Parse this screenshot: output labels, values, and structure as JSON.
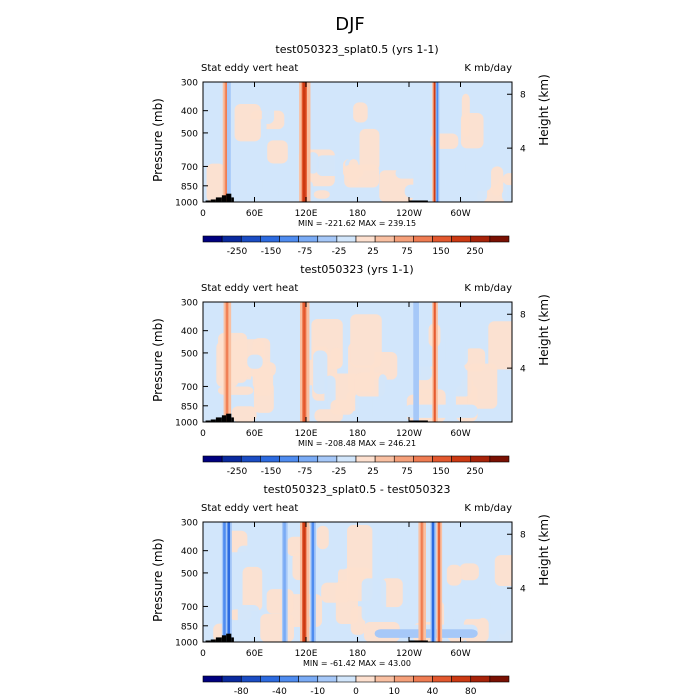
{
  "figure": {
    "title": "DJF"
  },
  "chart_data": [
    {
      "type": "heatmap",
      "title": "test050323_splat0.5 (yrs 1-1)",
      "left_label": "Stat eddy vert heat",
      "right_label": "K mb/day",
      "ylabel": "Pressure (mb)",
      "ylabel_right": "Height (km)",
      "yticks": [
        "300",
        "400",
        "500",
        "700",
        "850",
        "1000"
      ],
      "yticks_right": [
        "8",
        "4"
      ],
      "xticks": [
        "0",
        "60E",
        "120E",
        "180",
        "120W",
        "60W"
      ],
      "stats": "MIN = -221.62   MAX = 239.15",
      "colorbar_labels": [
        "-250",
        "-150",
        "-75",
        "-25",
        "25",
        "75",
        "150",
        "250"
      ],
      "colors": [
        "#00007f",
        "#0a2a9f",
        "#1b4dc4",
        "#2d6be0",
        "#4f8cf0",
        "#7aabf5",
        "#a6c8f8",
        "#d2e6fb",
        "#fde0cf",
        "#f9c0a2",
        "#f5a07a",
        "#ef7c52",
        "#e3582e",
        "#cc3a13",
        "#a82309",
        "#7a1003"
      ],
      "stripes": [
        {
          "lon": 27,
          "width": 4,
          "level": 10
        },
        {
          "lon": 30,
          "width": 2,
          "level": 6
        },
        {
          "lon": 118,
          "width": 6,
          "level": 12
        },
        {
          "lon": 270,
          "width": 3,
          "level": 12
        },
        {
          "lon": 273,
          "width": 2,
          "level": 4
        }
      ]
    },
    {
      "type": "heatmap",
      "title": "test050323 (yrs 1-1)",
      "left_label": "Stat eddy vert heat",
      "right_label": "K mb/day",
      "ylabel": "Pressure (mb)",
      "ylabel_right": "Height (km)",
      "yticks": [
        "300",
        "400",
        "500",
        "700",
        "850",
        "1000"
      ],
      "yticks_right": [
        "8",
        "4"
      ],
      "xticks": [
        "0",
        "60E",
        "120E",
        "180",
        "120W",
        "60W"
      ],
      "stats": "MIN = -208.48   MAX = 246.21",
      "colorbar_labels": [
        "-250",
        "-150",
        "-75",
        "-25",
        "25",
        "75",
        "150",
        "250"
      ],
      "colors": [
        "#00007f",
        "#0a2a9f",
        "#1b4dc4",
        "#2d6be0",
        "#4f8cf0",
        "#7aabf5",
        "#a6c8f8",
        "#d2e6fb",
        "#fde0cf",
        "#f9c0a2",
        "#f5a07a",
        "#ef7c52",
        "#e3582e",
        "#cc3a13",
        "#a82309",
        "#7a1003"
      ],
      "stripes": [
        {
          "lon": 28,
          "width": 4,
          "level": 10
        },
        {
          "lon": 118,
          "width": 5,
          "level": 11
        },
        {
          "lon": 270,
          "width": 3,
          "level": 11
        },
        {
          "lon": 248,
          "width": 3,
          "level": 6
        }
      ]
    },
    {
      "type": "heatmap",
      "title": "test050323_splat0.5 - test050323",
      "left_label": "Stat eddy vert heat",
      "right_label": "K mb/day",
      "ylabel": "Pressure (mb)",
      "ylabel_right": "Height (km)",
      "yticks": [
        "300",
        "400",
        "500",
        "700",
        "850",
        "1000"
      ],
      "yticks_right": [
        "8",
        "4"
      ],
      "xticks": [
        "0",
        "60E",
        "120E",
        "180",
        "120W",
        "60W"
      ],
      "stats": "MIN = -61.42   MAX =  43.00",
      "colorbar_labels": [
        "-80",
        "-40",
        "-10",
        "0",
        "10",
        "40",
        "80"
      ],
      "colors": [
        "#00007f",
        "#0a2a9f",
        "#1b4dc4",
        "#2d6be0",
        "#4f8cf0",
        "#7aabf5",
        "#a6c8f8",
        "#d2e6fb",
        "#fde0cf",
        "#f9c0a2",
        "#f5a07a",
        "#ef7c52",
        "#e3582e",
        "#cc3a13",
        "#a82309",
        "#7a1003"
      ],
      "stripes": [
        {
          "lon": 25,
          "width": 3,
          "level": 4
        },
        {
          "lon": 30,
          "width": 3,
          "level": 3
        },
        {
          "lon": 95,
          "width": 3,
          "level": 5
        },
        {
          "lon": 118,
          "width": 5,
          "level": 12
        },
        {
          "lon": 128,
          "width": 3,
          "level": 4
        },
        {
          "lon": 255,
          "width": 4,
          "level": 10
        },
        {
          "lon": 268,
          "width": 3,
          "level": 3
        },
        {
          "lon": 275,
          "width": 3,
          "level": 11
        }
      ]
    }
  ]
}
